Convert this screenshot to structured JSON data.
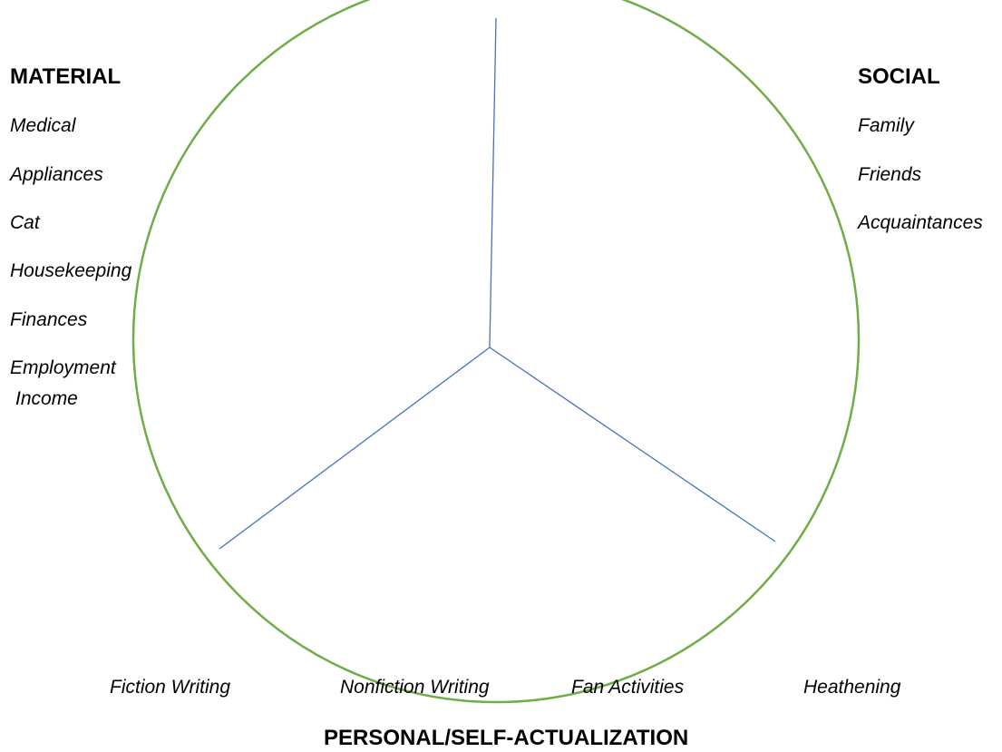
{
  "colors": {
    "circle_stroke": "#70ad47",
    "divider_stroke": "#4472c4",
    "text": "#000000",
    "background": "#ffffff"
  },
  "sections": {
    "material": {
      "heading": "MATERIAL",
      "items": [
        "Medical",
        "Appliances",
        "Cat",
        "Housekeeping",
        "Finances",
        "Employment",
        "Income"
      ]
    },
    "social": {
      "heading": "SOCIAL",
      "items": [
        "Family",
        "Friends",
        "Acquaintances"
      ]
    },
    "personal": {
      "heading": "PERSONAL/SELF-ACTUALIZATION",
      "items": [
        "Fiction Writing",
        "Nonfiction Writing",
        "Fan Activities",
        "Heathening"
      ]
    }
  }
}
